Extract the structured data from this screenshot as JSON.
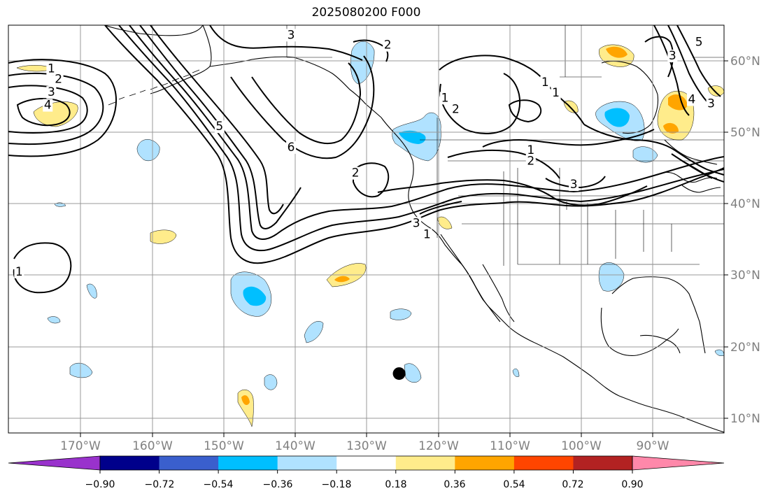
{
  "title": "2025080200 F000",
  "map": {
    "lon_labels": [
      "170°W",
      "160°W",
      "150°W",
      "140°W",
      "130°W",
      "120°W",
      "110°W",
      "100°W",
      "90°W"
    ],
    "lat_labels": [
      "60°N",
      "50°N",
      "40°N",
      "30°N",
      "20°N",
      "10°N"
    ],
    "extent": {
      "lon_min": -180,
      "lon_max": -80,
      "lat_min": 8,
      "lat_max": 65
    },
    "gridline_color": "#999999",
    "tick_label_color": "#808080",
    "contour_line_color": "#000000",
    "contour_labels": [
      {
        "text": "1",
        "lon": -174,
        "lat": 58.9
      },
      {
        "text": "2",
        "lon": -173,
        "lat": 57.4
      },
      {
        "text": "3",
        "lon": -174,
        "lat": 55.6
      },
      {
        "text": "4",
        "lon": -174.5,
        "lat": 53.8
      },
      {
        "text": "3",
        "lon": -140.5,
        "lat": 63.6
      },
      {
        "text": "2",
        "lon": -127,
        "lat": 62.2
      },
      {
        "text": "5",
        "lon": -150.5,
        "lat": 50.8
      },
      {
        "text": "6",
        "lon": -140.5,
        "lat": 47.9
      },
      {
        "text": "1",
        "lon": -119,
        "lat": 54.8
      },
      {
        "text": "2",
        "lon": -117.5,
        "lat": 53.2
      },
      {
        "text": "1",
        "lon": -107,
        "lat": 47.5
      },
      {
        "text": "2",
        "lon": -107,
        "lat": 46.0
      },
      {
        "text": "3",
        "lon": -101,
        "lat": 42.7
      },
      {
        "text": "2",
        "lon": -131.5,
        "lat": 44.3
      },
      {
        "text": "3",
        "lon": -123,
        "lat": 37.3
      },
      {
        "text": "1",
        "lon": -121.5,
        "lat": 35.7
      },
      {
        "text": "1",
        "lon": -105,
        "lat": 57.0
      },
      {
        "text": "1",
        "lon": -103.5,
        "lat": 55.5
      },
      {
        "text": "3",
        "lon": -87.2,
        "lat": 60.7
      },
      {
        "text": "5",
        "lon": -83.5,
        "lat": 62.6
      },
      {
        "text": "4",
        "lon": -84.5,
        "lat": 54.6
      },
      {
        "text": "3",
        "lon": -81.8,
        "lat": 54.0
      },
      {
        "text": "1",
        "lon": -178.5,
        "lat": 30.5
      }
    ],
    "marker": {
      "lon": -125.4,
      "lat": 16.3
    }
  },
  "colorbar": {
    "colors": [
      "#9932cc",
      "#00008b",
      "#3a5fcd",
      "#00bfff",
      "#b0e2ff",
      "#ffffff",
      "#ffec8b",
      "#ffa500",
      "#ff4500",
      "#b22222",
      "#ff88aa"
    ],
    "tick_labels": [
      "−0.90",
      "−0.72",
      "−0.54",
      "−0.36",
      "−0.18",
      "0.18",
      "0.36",
      "0.54",
      "0.72",
      "0.90"
    ]
  }
}
